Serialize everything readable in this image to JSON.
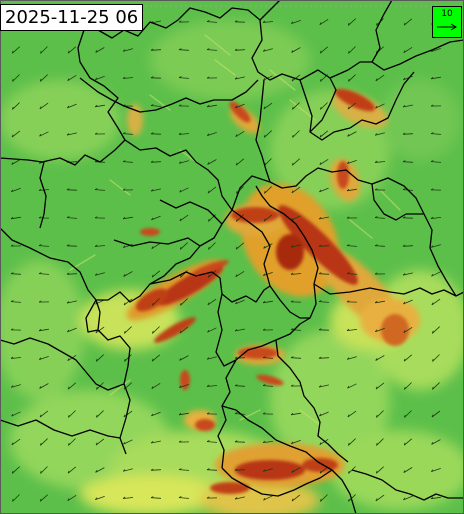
{
  "timestamp": "2025-11-25 06",
  "wind_key": {
    "value": "10",
    "icon": "arrow-right-icon"
  },
  "colors": {
    "base_green": "#5fc24c",
    "light_green": "#8cd45a",
    "yellow": "#d8e85a",
    "orange": "#e8a028",
    "red": "#c83c14",
    "dark_red": "#8c1e0a",
    "key_green": "#00ff00"
  }
}
